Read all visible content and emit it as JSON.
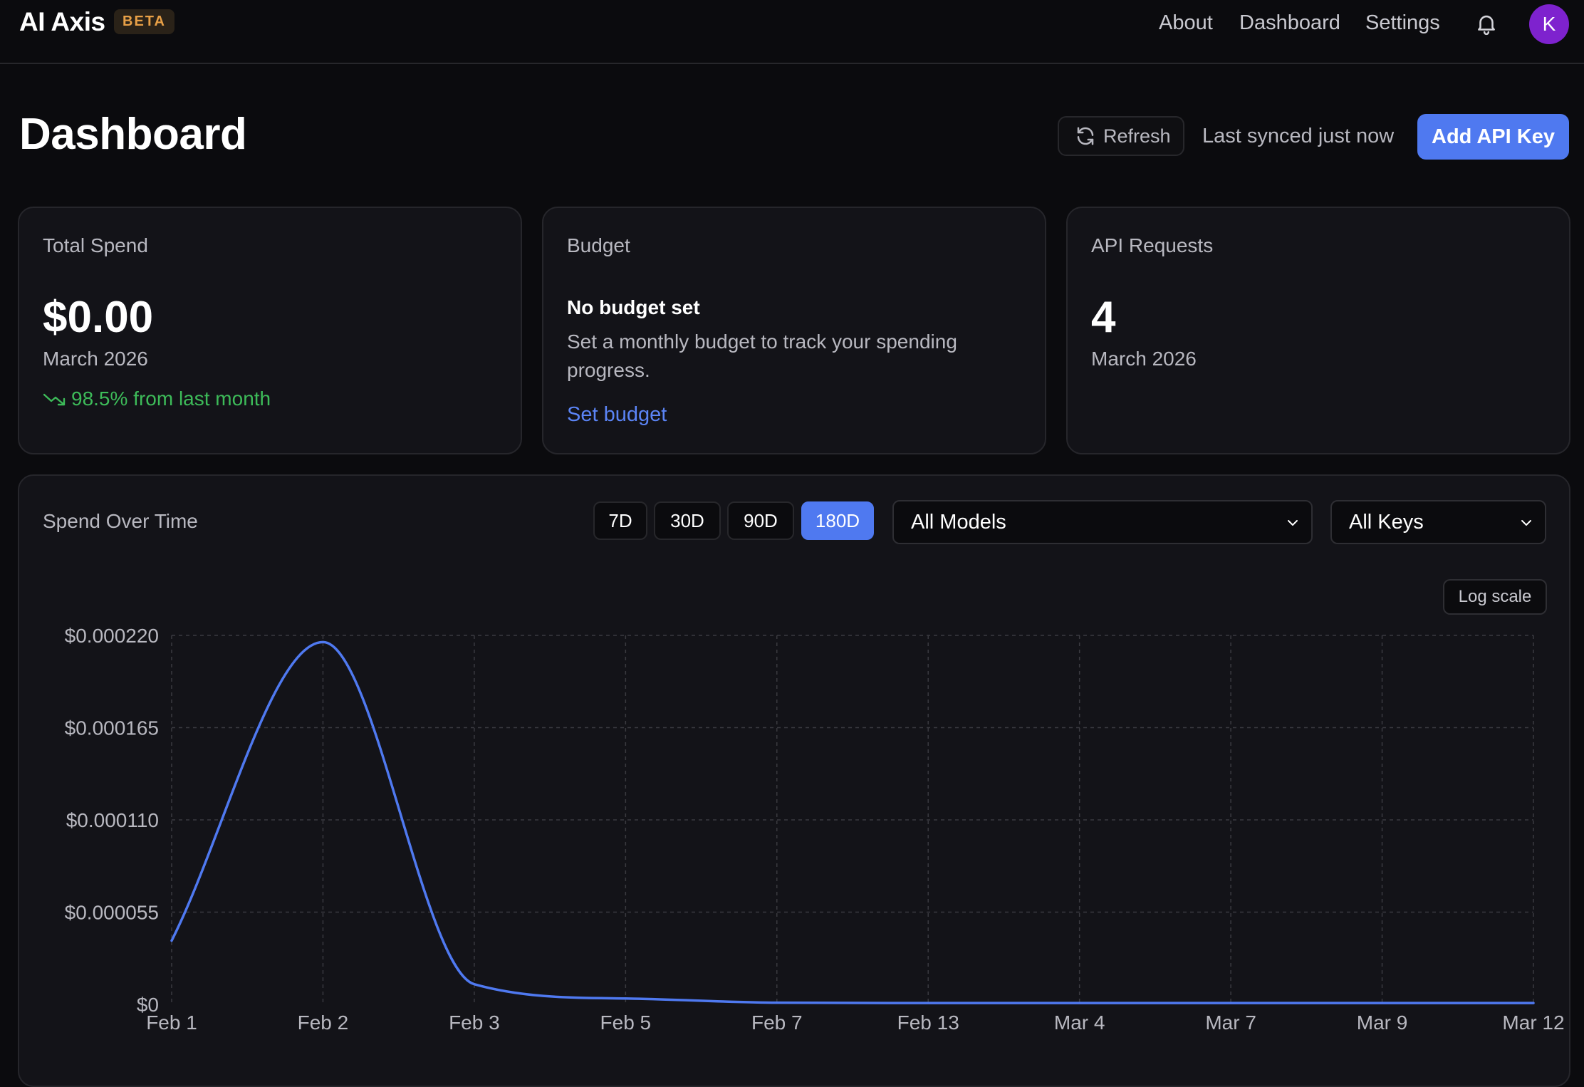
{
  "nav": {
    "brand": "AI Axis",
    "badge": "BETA",
    "links": [
      "About",
      "Dashboard",
      "Settings"
    ],
    "avatar_initial": "K",
    "icons": [
      "bell-icon"
    ]
  },
  "header": {
    "title": "Dashboard",
    "refresh_label": "Refresh",
    "synced_text": "Last synced just now",
    "add_key_label": "Add API Key",
    "accent_color": "#4f79f0"
  },
  "cards": {
    "spend": {
      "label": "Total Spend",
      "value": "$0.00",
      "period": "March 2026",
      "trend": "98.5% from last month",
      "trend_color": "#3dbb59"
    },
    "budget": {
      "label": "Budget",
      "title": "No budget set",
      "description": "Set a monthly budget to track your spending progress.",
      "link": "Set budget"
    },
    "requests": {
      "label": "API Requests",
      "value": "4",
      "period": "March 2026"
    }
  },
  "chart_panel": {
    "title": "Spend Over Time",
    "ranges": [
      "7D",
      "30D",
      "90D",
      "180D"
    ],
    "active_range": "180D",
    "model_select": "All Models",
    "key_select": "All Keys",
    "log_scale_label": "Log scale"
  },
  "chart_data": {
    "type": "line",
    "title": "",
    "xlabel": "",
    "ylabel": "",
    "categories": [
      "Feb 1",
      "Feb 2",
      "Feb 3",
      "Feb 5",
      "Feb 7",
      "Feb 13",
      "Mar 4",
      "Mar 7",
      "Mar 9",
      "Mar 12"
    ],
    "series": [
      {
        "color": "#4f79f0",
        "values": [
          3.8e-05,
          0.000216,
          1.2e-05,
          3.5e-06,
          1e-06,
          8e-07,
          8e-07,
          8e-07,
          8e-07,
          8e-07
        ]
      }
    ],
    "yticks": [
      "$0",
      "$0.000055",
      "$0.000110",
      "$0.000165",
      "$0.000220"
    ],
    "ylim": [
      0,
      0.00022
    ],
    "grid": true,
    "curve": "smooth"
  }
}
